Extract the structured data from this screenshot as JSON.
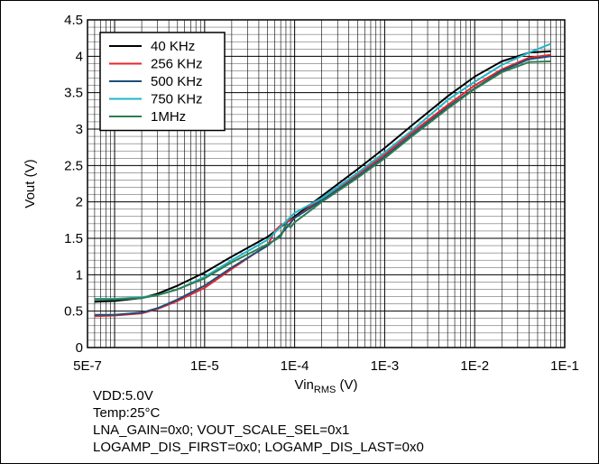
{
  "chart_data": {
    "type": "line",
    "title": "",
    "xlabel_main": "Vin",
    "xlabel_sub": "RMS",
    "xlabel_unit": " (V)",
    "ylabel": "Vout (V)",
    "xscale": "log",
    "xlim": [
      5e-07,
      0.1
    ],
    "ylim": [
      0,
      4.5
    ],
    "grid": true,
    "legend_position": "top-left",
    "x_ticks": [
      {
        "value": 5e-07,
        "label": "5E-7"
      },
      {
        "value": 1e-05,
        "label": "1E-5"
      },
      {
        "value": 0.0001,
        "label": "1E-4"
      },
      {
        "value": 0.001,
        "label": "1E-3"
      },
      {
        "value": 0.01,
        "label": "1E-2"
      },
      {
        "value": 0.1,
        "label": "1E-1"
      }
    ],
    "y_ticks": [
      {
        "value": 0,
        "label": "0"
      },
      {
        "value": 0.5,
        "label": "0.5"
      },
      {
        "value": 1,
        "label": "1"
      },
      {
        "value": 1.5,
        "label": "1.5"
      },
      {
        "value": 2,
        "label": "2"
      },
      {
        "value": 2.5,
        "label": "2.5"
      },
      {
        "value": 3,
        "label": "3"
      },
      {
        "value": 3.5,
        "label": "3.5"
      },
      {
        "value": 4,
        "label": "4"
      },
      {
        "value": 4.5,
        "label": "4.5"
      }
    ],
    "series": [
      {
        "name": "40 KHz",
        "color": "#000000",
        "points": [
          [
            6e-07,
            0.63
          ],
          [
            1e-06,
            0.64
          ],
          [
            2e-06,
            0.68
          ],
          [
            3e-06,
            0.74
          ],
          [
            5e-06,
            0.85
          ],
          [
            1e-05,
            1.03
          ],
          [
            2e-05,
            1.25
          ],
          [
            5e-05,
            1.52
          ],
          [
            0.0001,
            1.8
          ],
          [
            0.0002,
            2.08
          ],
          [
            0.0005,
            2.45
          ],
          [
            0.001,
            2.74
          ],
          [
            0.002,
            3.05
          ],
          [
            0.005,
            3.45
          ],
          [
            0.01,
            3.72
          ],
          [
            0.02,
            3.93
          ],
          [
            0.04,
            4.05
          ],
          [
            0.07,
            4.07
          ]
        ]
      },
      {
        "name": "256 KHz",
        "color": "#e8262b",
        "points": [
          [
            6e-07,
            0.43
          ],
          [
            1e-06,
            0.44
          ],
          [
            2e-06,
            0.47
          ],
          [
            3e-06,
            0.53
          ],
          [
            5e-06,
            0.64
          ],
          [
            1e-05,
            0.82
          ],
          [
            2e-05,
            1.08
          ],
          [
            4e-05,
            1.33
          ],
          [
            5e-05,
            1.4
          ],
          [
            6e-05,
            1.6
          ],
          [
            7e-05,
            1.68
          ],
          [
            0.0001,
            1.78
          ],
          [
            0.0002,
            2.05
          ],
          [
            0.0005,
            2.38
          ],
          [
            0.001,
            2.65
          ],
          [
            0.002,
            2.95
          ],
          [
            0.005,
            3.33
          ],
          [
            0.01,
            3.6
          ],
          [
            0.02,
            3.82
          ],
          [
            0.04,
            3.98
          ],
          [
            0.07,
            4.02
          ]
        ]
      },
      {
        "name": "500 KHz",
        "color": "#1f4e79",
        "points": [
          [
            6e-07,
            0.45
          ],
          [
            1e-06,
            0.45
          ],
          [
            2e-06,
            0.48
          ],
          [
            3e-06,
            0.54
          ],
          [
            5e-06,
            0.66
          ],
          [
            1e-05,
            0.85
          ],
          [
            2e-05,
            1.1
          ],
          [
            5e-05,
            1.4
          ],
          [
            7e-05,
            1.55
          ],
          [
            0.0001,
            1.78
          ],
          [
            0.0002,
            2.02
          ],
          [
            0.0005,
            2.35
          ],
          [
            0.001,
            2.62
          ],
          [
            0.002,
            2.92
          ],
          [
            0.005,
            3.3
          ],
          [
            0.01,
            3.56
          ],
          [
            0.02,
            3.8
          ],
          [
            0.04,
            3.96
          ],
          [
            0.07,
            4.0
          ]
        ]
      },
      {
        "name": "750 KHz",
        "color": "#22b5c8",
        "points": [
          [
            6e-07,
            0.67
          ],
          [
            1e-06,
            0.67
          ],
          [
            2e-06,
            0.69
          ],
          [
            3e-06,
            0.72
          ],
          [
            5e-06,
            0.8
          ],
          [
            1e-05,
            0.97
          ],
          [
            2e-05,
            1.2
          ],
          [
            5e-05,
            1.48
          ],
          [
            0.0001,
            1.85
          ],
          [
            0.0002,
            2.05
          ],
          [
            0.0005,
            2.4
          ],
          [
            0.001,
            2.68
          ],
          [
            0.002,
            2.98
          ],
          [
            0.005,
            3.4
          ],
          [
            0.01,
            3.65
          ],
          [
            0.02,
            3.88
          ],
          [
            0.04,
            4.05
          ],
          [
            0.07,
            4.17
          ]
        ]
      },
      {
        "name": "1MHz",
        "color": "#2e7d4f",
        "points": [
          [
            6e-07,
            0.66
          ],
          [
            1e-06,
            0.66
          ],
          [
            2e-06,
            0.68
          ],
          [
            3e-06,
            0.72
          ],
          [
            5e-06,
            0.8
          ],
          [
            1e-05,
            0.95
          ],
          [
            2e-05,
            1.17
          ],
          [
            5e-05,
            1.42
          ],
          [
            7e-05,
            1.52
          ],
          [
            8e-05,
            1.7
          ],
          [
            9e-05,
            1.65
          ],
          [
            0.0001,
            1.72
          ],
          [
            0.0002,
            2.0
          ],
          [
            0.0005,
            2.33
          ],
          [
            0.001,
            2.6
          ],
          [
            0.002,
            2.9
          ],
          [
            0.005,
            3.28
          ],
          [
            0.01,
            3.55
          ],
          [
            0.02,
            3.78
          ],
          [
            0.04,
            3.92
          ],
          [
            0.07,
            3.93
          ]
        ]
      }
    ]
  },
  "notes": {
    "vdd": "VDD:5.0V",
    "temp": "Temp:25°C",
    "gain": "LNA_GAIN=0x0; VOUT_SCALE_SEL=0x1",
    "logamp": "LOGAMP_DIS_FIRST=0x0; LOGAMP_DIS_LAST=0x0"
  }
}
